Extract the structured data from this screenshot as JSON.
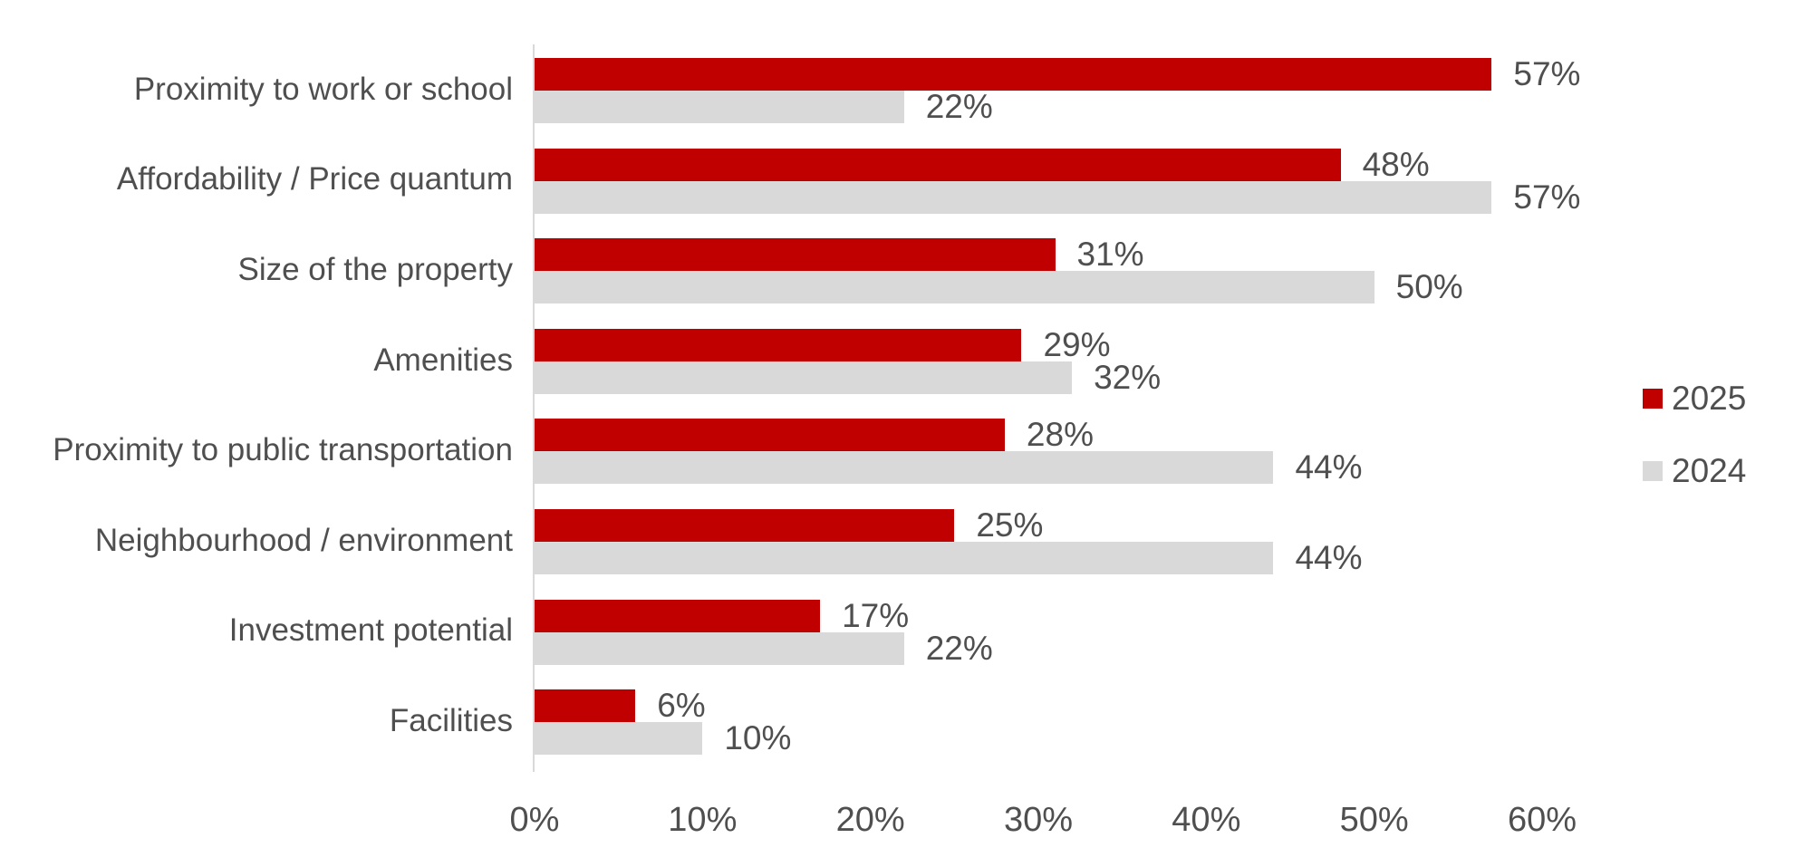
{
  "colors": {
    "background": "#FFFFFF",
    "text": "#4F4F4F",
    "axis_line": "#D9D9D9",
    "series_2025": "#C00000",
    "series_2024": "#D9D9D9"
  },
  "chart_data": {
    "type": "bar",
    "orientation": "horizontal",
    "title": "",
    "xlabel": "",
    "ylabel": "",
    "grid": false,
    "data_labels": true,
    "value_suffix": "%",
    "categories": [
      "Proximity to work or school",
      "Affordability / Price quantum",
      "Size of the property",
      "Amenities",
      "Proximity to public transportation",
      "Neighbourhood / environment",
      "Investment potential",
      "Facilities"
    ],
    "series": [
      {
        "name": "2025",
        "color": "#C00000",
        "values": [
          57,
          48,
          31,
          29,
          28,
          25,
          17,
          6
        ]
      },
      {
        "name": "2024",
        "color": "#D9D9D9",
        "values": [
          22,
          57,
          50,
          32,
          44,
          44,
          22,
          10
        ]
      }
    ],
    "data_label_texts": [
      [
        "57%",
        "48%",
        "31%",
        "29%",
        "28%",
        "25%",
        "17%",
        "6%"
      ],
      [
        "22%",
        "57%",
        "50%",
        "32%",
        "44%",
        "44%",
        "22%",
        "10%"
      ]
    ],
    "x_axis": {
      "min": 0,
      "max": 60,
      "tick_step": 10,
      "tick_labels": [
        "0%",
        "10%",
        "20%",
        "30%",
        "40%",
        "50%",
        "60%"
      ]
    },
    "legend": {
      "position": "right",
      "entries": [
        "2025",
        "2024"
      ]
    }
  }
}
